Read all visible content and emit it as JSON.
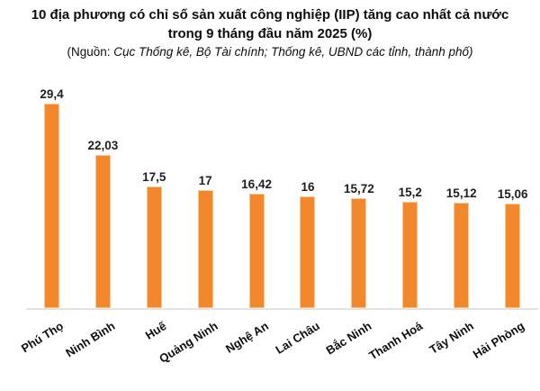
{
  "title": {
    "line1": "10 địa phương có chỉ số sản xuất công nghiệp (IIP) tăng cao nhất cả nước",
    "line2": "trong 9 tháng đầu năm 2025 (%)"
  },
  "source": {
    "prefix": "(Nguồn:",
    "text": "Cục Thống kê, Bộ Tài chính; Thống kê, UBND các tỉnh, thành phố)"
  },
  "chart_data": {
    "type": "bar",
    "title": "10 địa phương có chỉ số sản xuất công nghiệp (IIP) tăng cao nhất cả nước trong 9 tháng đầu năm 2025 (%)",
    "source": "(Nguồn: Cục Thống kê, Bộ Tài chính; Thống kê, UBND các tỉnh, thành phố)",
    "categories": [
      "Phú Thọ",
      "Ninh Bình",
      "Huế",
      "Quảng Ninh",
      "Nghệ An",
      "Lai Châu",
      "Bắc Ninh",
      "Thanh Hoá",
      "Tây Ninh",
      "Hải Phòng"
    ],
    "values": [
      29.4,
      22.03,
      17.5,
      17,
      16.42,
      16,
      15.72,
      15.2,
      15.12,
      15.06
    ],
    "value_labels": [
      "29,4",
      "22,03",
      "17,5",
      "17",
      "16,42",
      "16",
      "15,72",
      "15,2",
      "15,12",
      "15,06"
    ],
    "xlabel": "",
    "ylabel": "",
    "ylim": [
      0,
      30
    ],
    "grid": false,
    "legend": false,
    "data_labels": true,
    "bar_color": "#F2872B",
    "bar_border_color": "#F8C98E",
    "axis_line_color": "#E3E3E3",
    "label_color": "#0D0D0D"
  }
}
